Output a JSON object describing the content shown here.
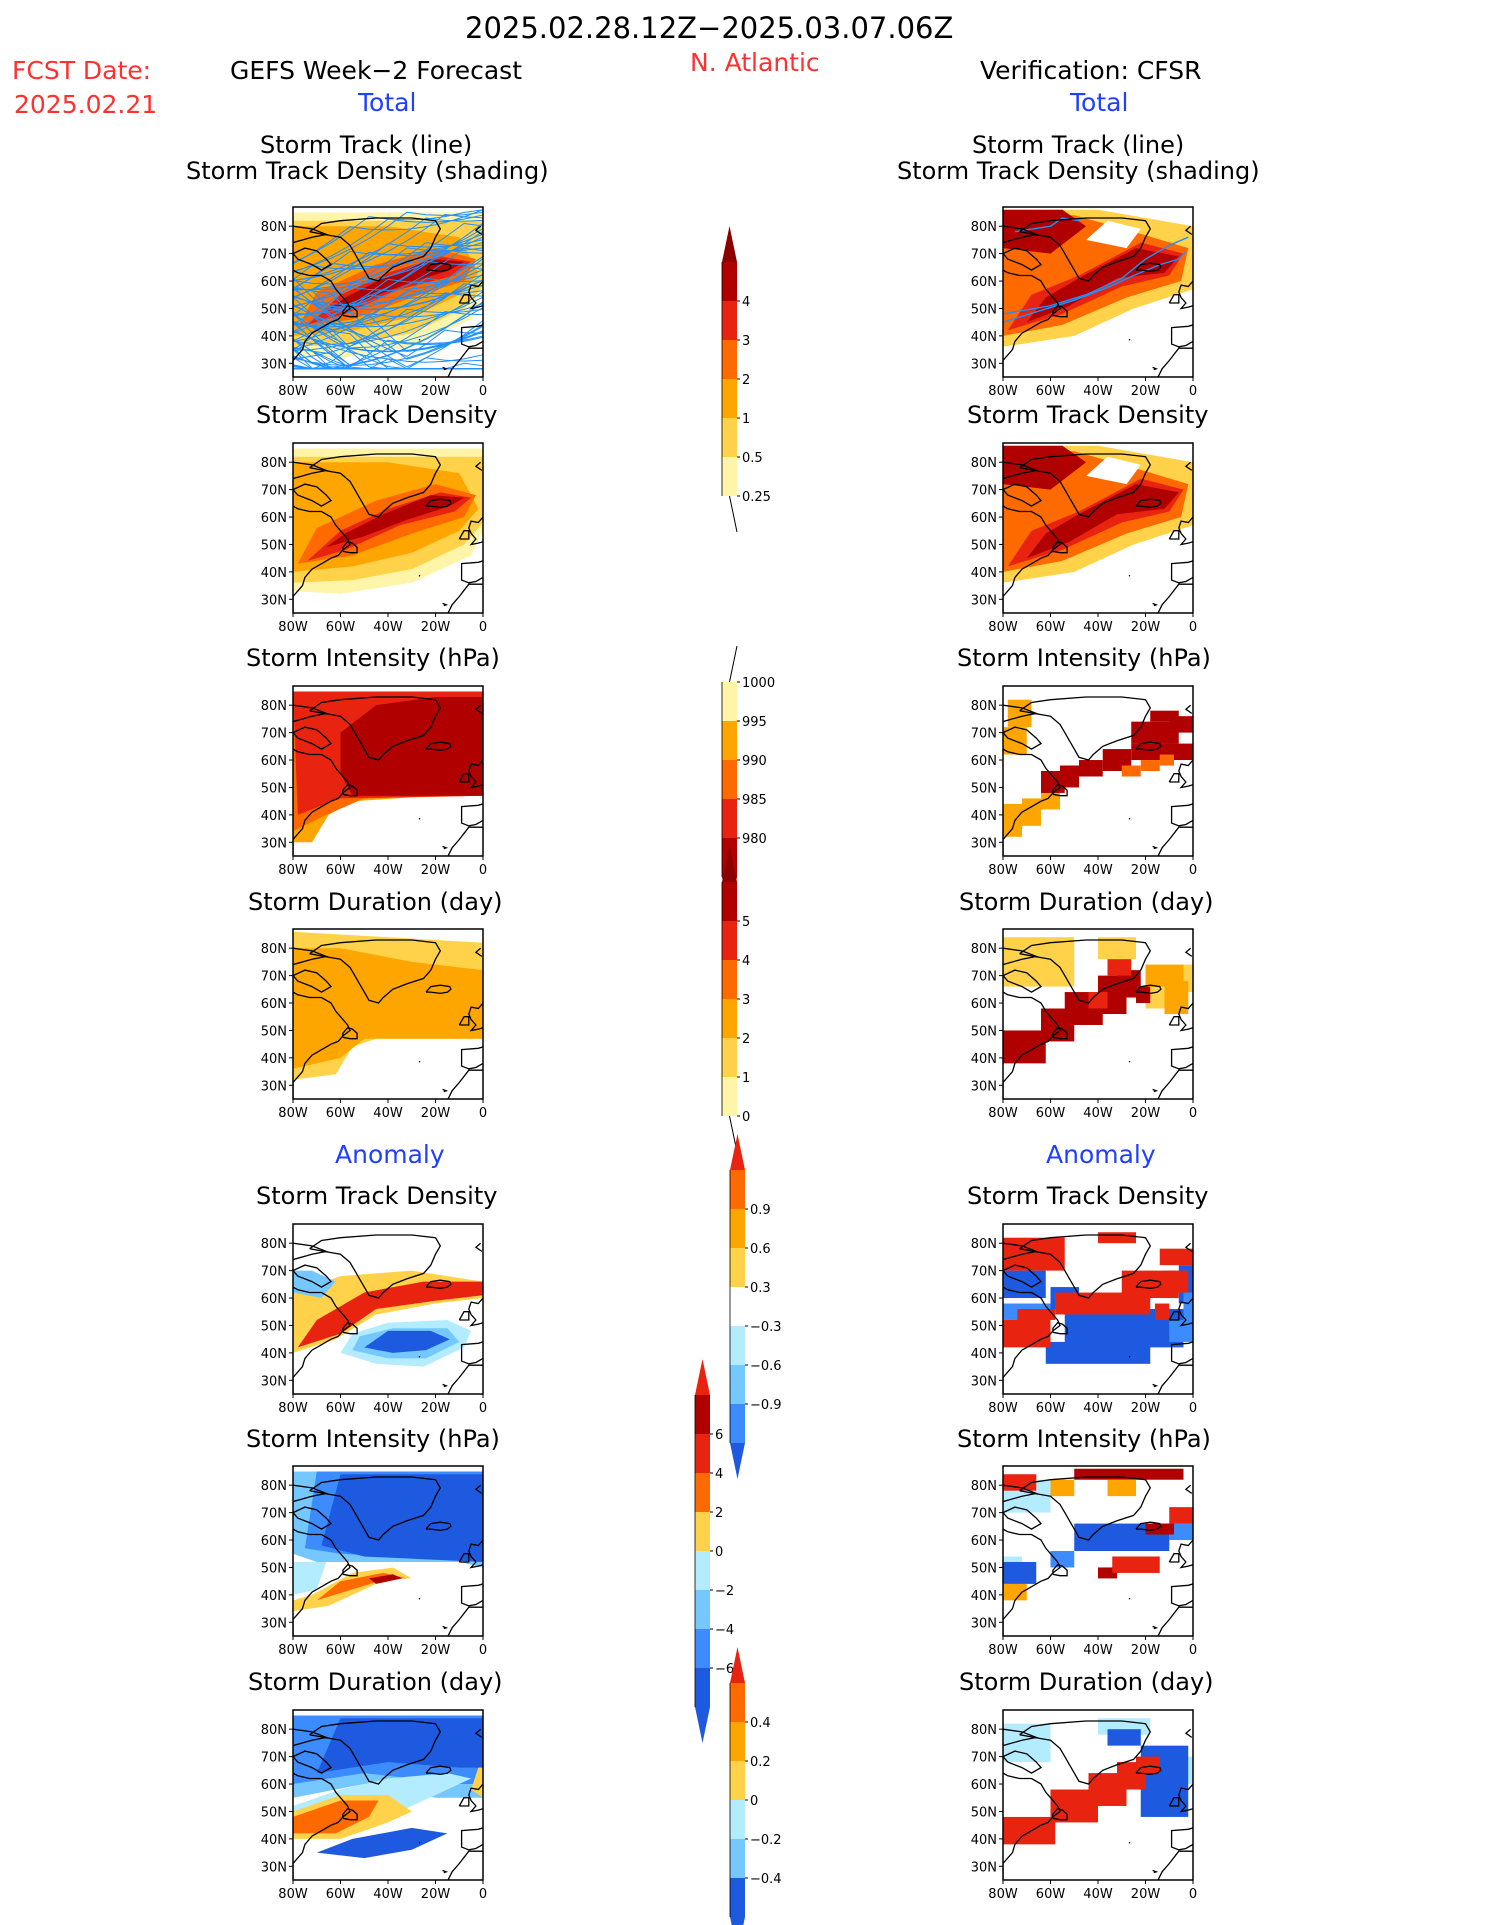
{
  "header": {
    "date_range": "2025.02.28.12Z−2025.03.07.06Z",
    "fcst_label": "FCST Date:",
    "fcst_date": "2025.02.21",
    "left_title": "GEFS Week−2 Forecast",
    "region": "N. Atlantic",
    "right_title": "Verification: CFSR",
    "left_section": "Total",
    "right_section": "Total",
    "anomaly_left": "Anomaly",
    "anomaly_right": "Anomaly"
  },
  "panel_titles": {
    "track_line": "Storm Track (line)",
    "track_shading": "Storm Track Density (shading)",
    "density": "Storm Track Density",
    "intensity": "Storm Intensity (hPa)",
    "duration": "Storm Duration (day)"
  },
  "map_axes": {
    "lat_labels": [
      "80N",
      "70N",
      "60N",
      "50N",
      "40N",
      "30N"
    ],
    "lon_labels": [
      "80W",
      "60W",
      "40W",
      "20W",
      "0"
    ]
  },
  "colors": {
    "yellow_light": "#fff5a8",
    "yellow": "#ffd24a",
    "orange_light": "#ffa500",
    "orange": "#ff6a00",
    "red": "#e82410",
    "dark_red": "#b00000",
    "darkest_red": "#8c0000",
    "blue_lightest": "#b4ecff",
    "blue_light": "#74c8ff",
    "blue": "#3c8cff",
    "blue_dark": "#1e5ae0",
    "track_line": "#2090ff"
  },
  "colorbars": [
    {
      "id": "density",
      "labels": [
        "4",
        "3",
        "2",
        "1",
        "0.5",
        "0.25"
      ]
    },
    {
      "id": "intensity",
      "labels": [
        "1000",
        "995",
        "990",
        "985",
        "980"
      ]
    },
    {
      "id": "duration",
      "labels": [
        "5",
        "4",
        "3",
        "2",
        "1",
        "0"
      ]
    },
    {
      "id": "anom_density",
      "labels": [
        "0.9",
        "0.6",
        "0.3",
        "−0.3",
        "−0.6",
        "−0.9"
      ]
    },
    {
      "id": "anom_intensity",
      "labels": [
        "6",
        "4",
        "2",
        "0",
        "−2",
        "−4",
        "−6"
      ]
    },
    {
      "id": "anom_duration",
      "labels": [
        "0.4",
        "0.2",
        "0",
        "−0.2",
        "−0.4"
      ]
    }
  ]
}
